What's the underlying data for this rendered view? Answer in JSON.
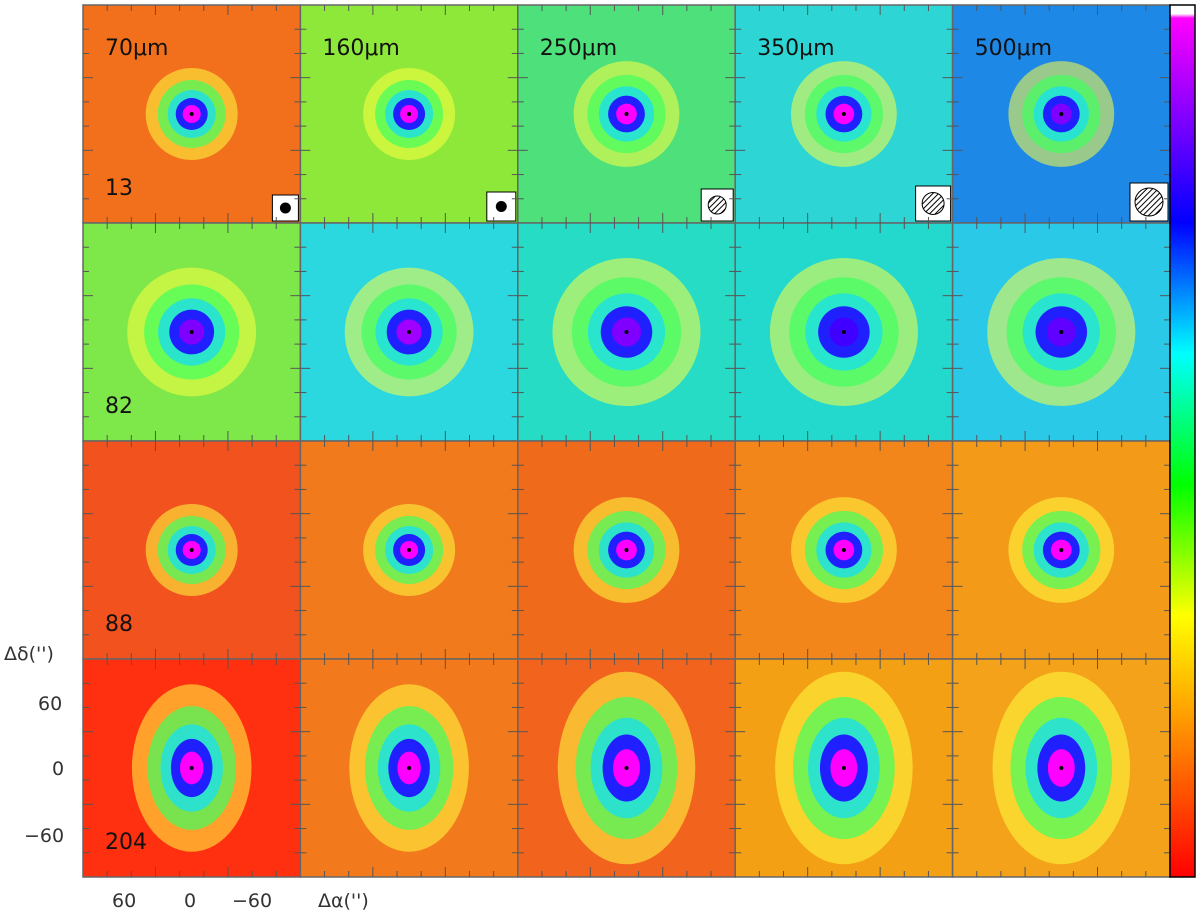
{
  "figure": {
    "wavelength_labels": [
      "70μm",
      "160μm",
      "250μm",
      "350μm",
      "500μm"
    ],
    "source_ids": [
      "13",
      "82",
      "88",
      "204"
    ],
    "axes": {
      "y_label": "Δδ('')",
      "x_label": "Δα('')",
      "y_ticks": [
        "60",
        "0",
        "−60"
      ],
      "x_ticks": [
        "60",
        "0",
        "−60"
      ]
    },
    "colorbar": {
      "colormap": "rainbow (red→orange→yellow→green→cyan→blue→purple→magenta)",
      "colors": [
        "#ff0000",
        "#ff8000",
        "#ffff00",
        "#00ff00",
        "#00ffff",
        "#0000ff",
        "#8000ff",
        "#ff00ff",
        "#ffffff"
      ]
    },
    "beam_icons": [
      "filled-circle",
      "filled-circle",
      "hatched-circle",
      "hatched-circle",
      "hatched-circle"
    ],
    "panel_colors": {
      "row_backgrounds": [
        "#f26a1c",
        "#6ee63c",
        "#f2521e",
        "#ff3010"
      ],
      "notes": "background colour per source row at 70μm, evolving to bluer/greener at longer wavelengths"
    }
  }
}
